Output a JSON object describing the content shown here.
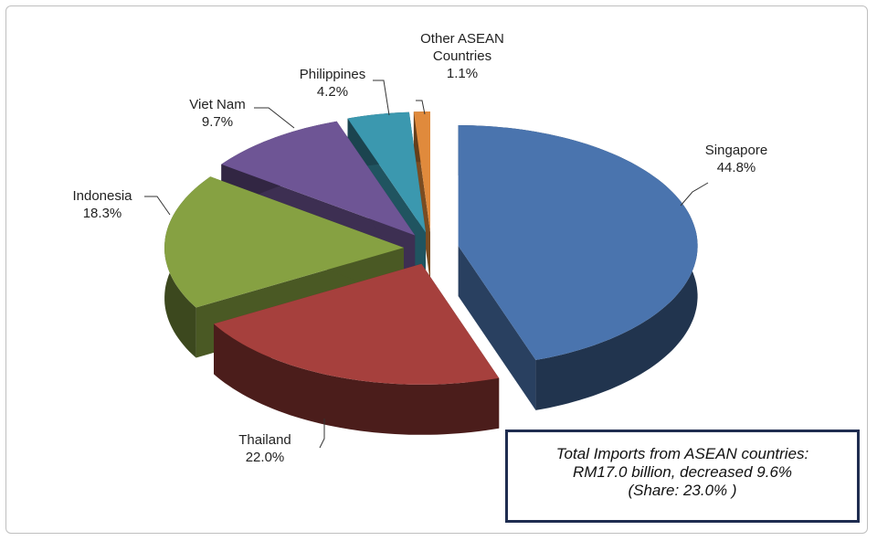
{
  "chart_data": {
    "type": "pie3d",
    "categories": [
      "Singapore",
      "Thailand",
      "Indonesia",
      "Viet Nam",
      "Philippines",
      "Other ASEAN Countries"
    ],
    "values": [
      44.8,
      22.0,
      18.3,
      9.7,
      4.2,
      1.1
    ],
    "value_labels": [
      "44.8%",
      "22.0%",
      "18.3%",
      "9.7%",
      "4.2%",
      "1.1%"
    ],
    "colors": [
      "#4a74ae",
      "#a6403d",
      "#86a142",
      "#6e5595",
      "#3b98af",
      "#e08a3c"
    ],
    "annotation": [
      "Total Imports from ASEAN countries:",
      "RM17.0 billion, decreased 9.6%",
      "(Share: 23.0% )"
    ]
  }
}
